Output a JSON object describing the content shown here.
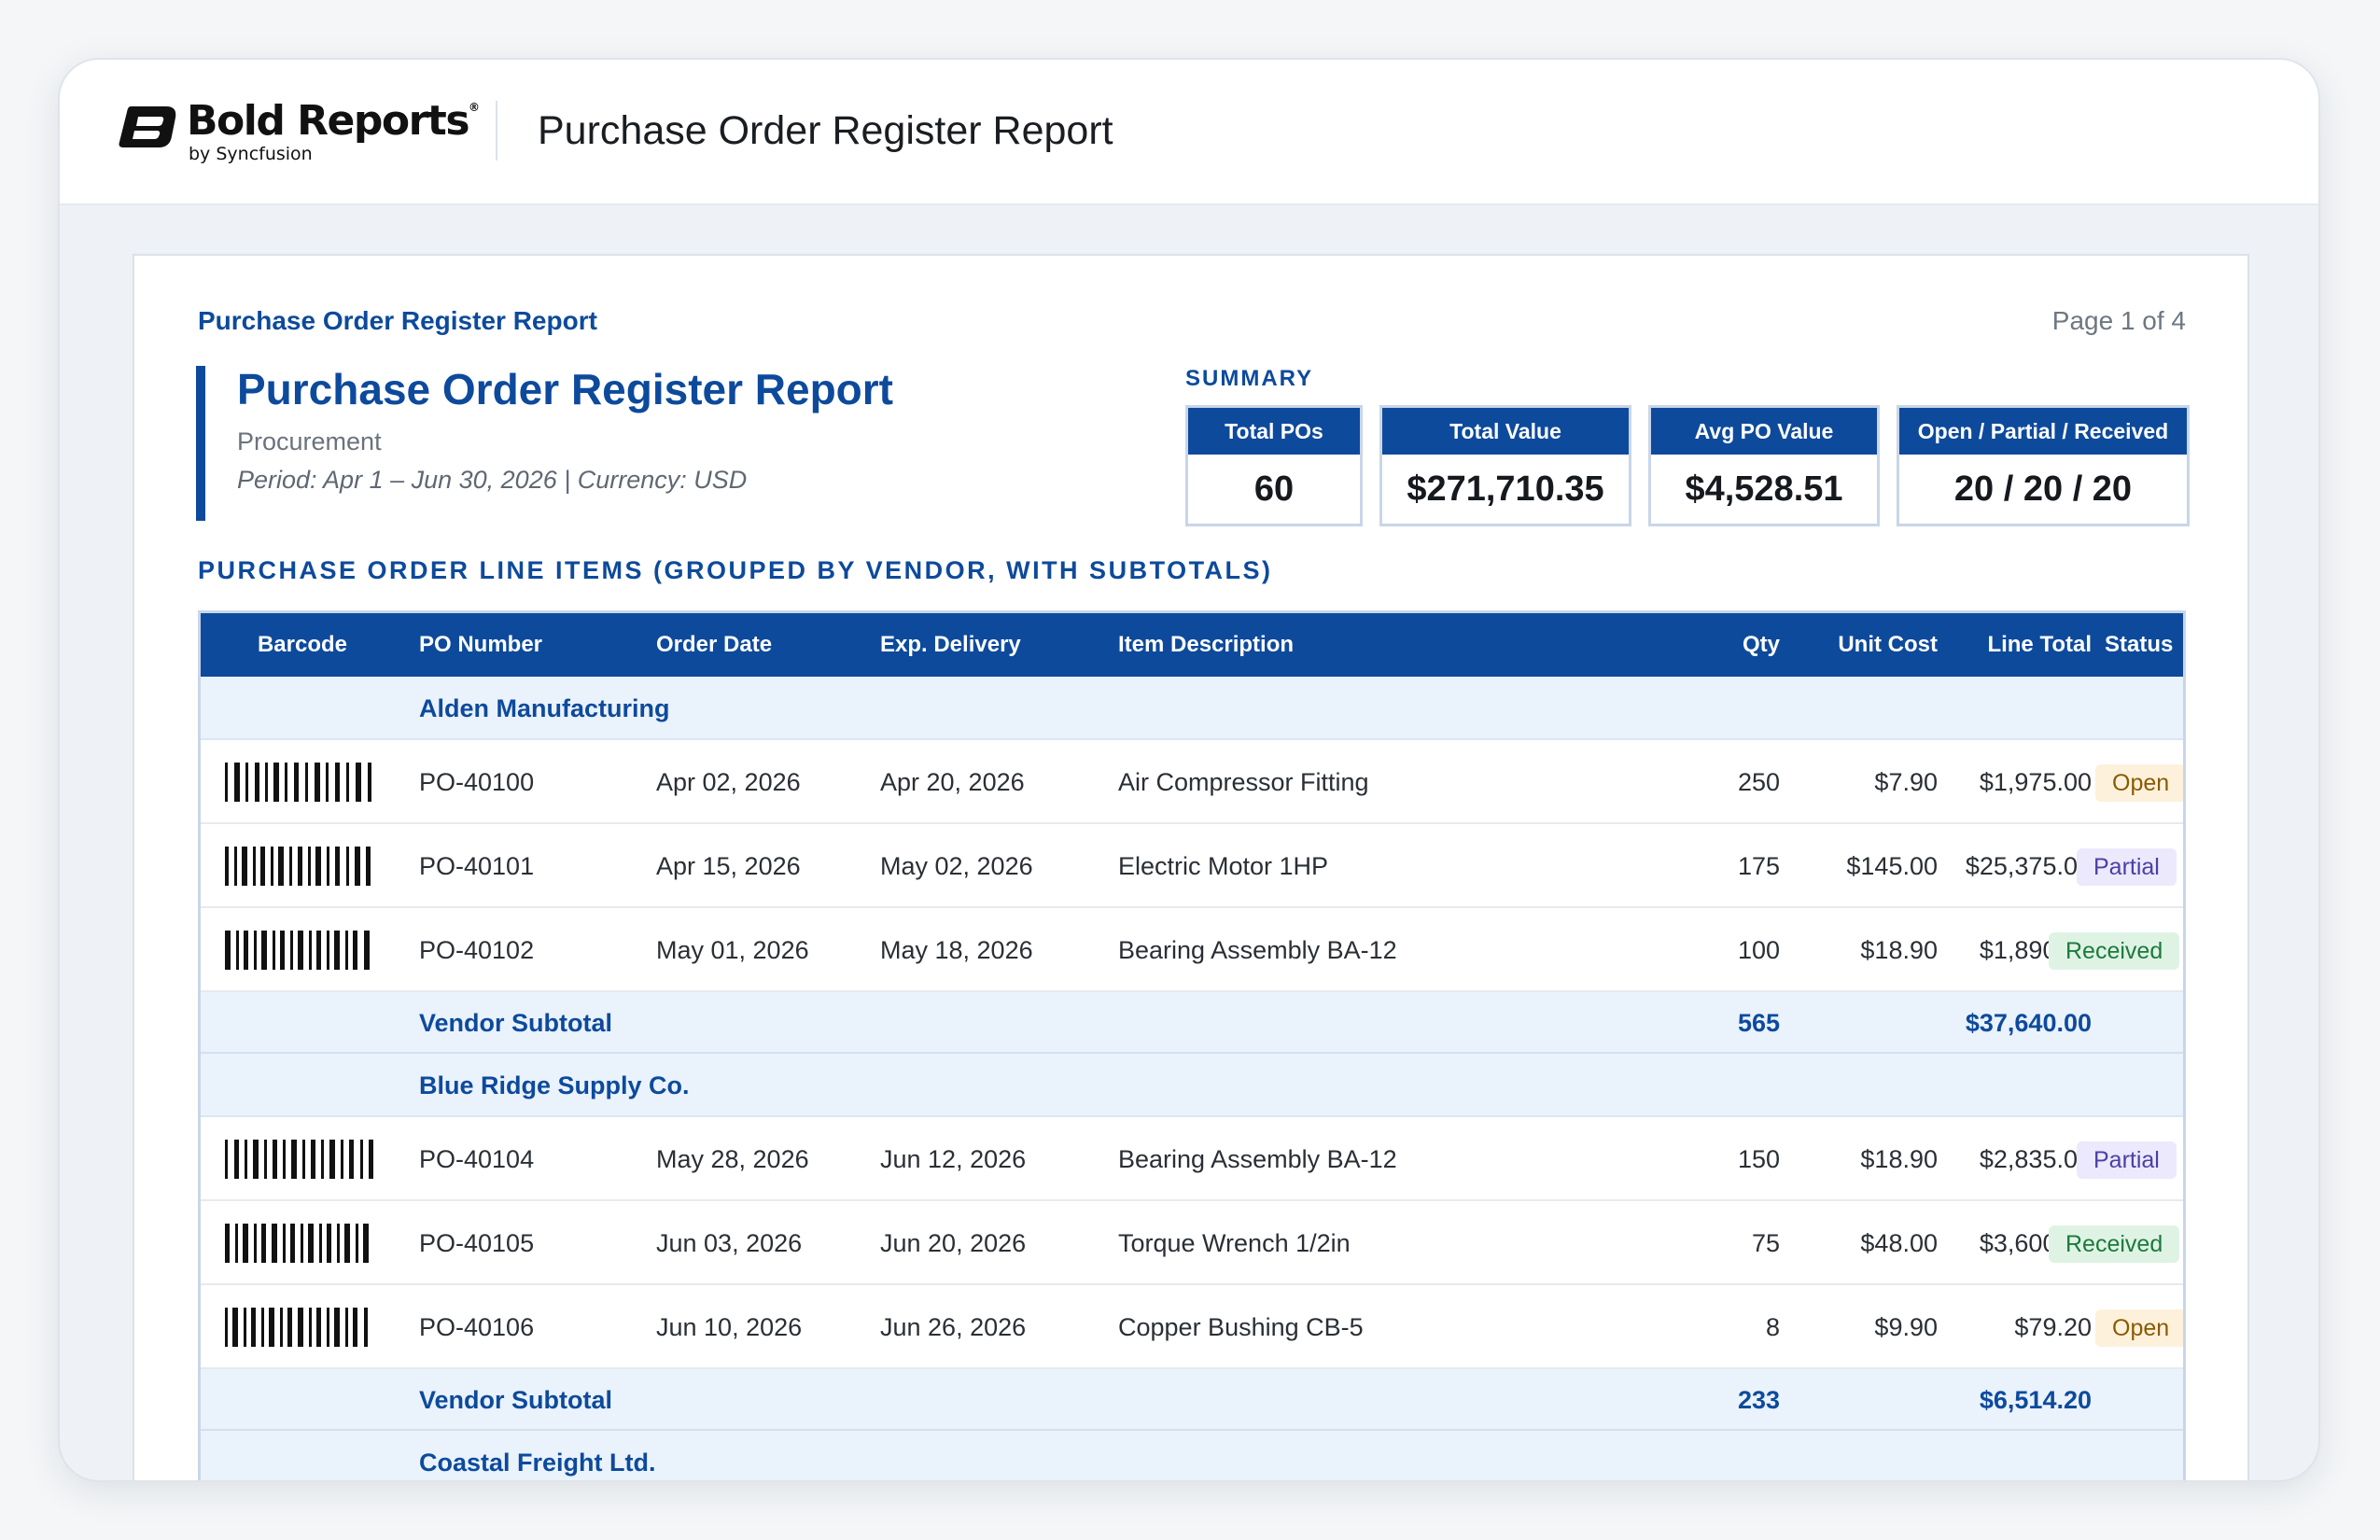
{
  "app": {
    "logo_word": "Bold Reports",
    "logo_reg": "®",
    "logo_sub": "by Syncfusion",
    "title": "Purchase Order Register Report"
  },
  "page": {
    "header_title": "Purchase Order Register Report",
    "page_number": "Page 1 of 4"
  },
  "report": {
    "title": "Purchase Order Register Report",
    "department": "Procurement",
    "period": "Period: Apr 1 – Jun 30, 2026  |  Currency: USD"
  },
  "summary": {
    "label": "SUMMARY",
    "kpis": [
      {
        "label": "Total POs",
        "value": "60"
      },
      {
        "label": "Total Value",
        "value": "$271,710.35"
      },
      {
        "label": "Avg PO Value",
        "value": "$4,528.51"
      },
      {
        "label": "Open / Partial / Received",
        "value": "20 / 20 / 20"
      }
    ]
  },
  "section_label": "PURCHASE ORDER LINE ITEMS (GROUPED BY VENDOR, WITH SUBTOTALS)",
  "table": {
    "columns": {
      "barcode": "Barcode",
      "po_number": "PO Number",
      "order_date": "Order Date",
      "exp_delivery": "Exp. Delivery",
      "item_description": "Item Description",
      "qty": "Qty",
      "unit_cost": "Unit Cost",
      "line_total": "Line Total",
      "status": "Status"
    },
    "groups": [
      {
        "vendor": "Alden Manufacturing",
        "rows": [
          {
            "po": "PO-40100",
            "order_date": "Apr 02, 2026",
            "exp_delivery": "Apr 20, 2026",
            "item": "Air Compressor Fitting",
            "qty": "250",
            "unit_cost": "$7.90",
            "line_total": "$1,975.00",
            "status": "Open"
          },
          {
            "po": "PO-40101",
            "order_date": "Apr 15, 2026",
            "exp_delivery": "May 02, 2026",
            "item": "Electric Motor 1HP",
            "qty": "175",
            "unit_cost": "$145.00",
            "line_total": "$25,375.00",
            "status": "Partial"
          },
          {
            "po": "PO-40102",
            "order_date": "May 01, 2026",
            "exp_delivery": "May 18, 2026",
            "item": "Bearing Assembly BA-12",
            "qty": "100",
            "unit_cost": "$18.90",
            "line_total": "$1,890.00",
            "status": "Received"
          }
        ],
        "subtotal_label": "Vendor Subtotal",
        "subtotal_qty": "565",
        "subtotal_total": "$37,640.00"
      },
      {
        "vendor": "Blue Ridge Supply Co.",
        "rows": [
          {
            "po": "PO-40104",
            "order_date": "May 28, 2026",
            "exp_delivery": "Jun 12, 2026",
            "item": "Bearing Assembly BA-12",
            "qty": "150",
            "unit_cost": "$18.90",
            "line_total": "$2,835.00",
            "status": "Partial"
          },
          {
            "po": "PO-40105",
            "order_date": "Jun 03, 2026",
            "exp_delivery": "Jun 20, 2026",
            "item": "Torque Wrench 1/2in",
            "qty": "75",
            "unit_cost": "$48.00",
            "line_total": "$3,600.00",
            "status": "Received"
          },
          {
            "po": "PO-40106",
            "order_date": "Jun 10, 2026",
            "exp_delivery": "Jun 26, 2026",
            "item": "Copper Bushing CB-5",
            "qty": "8",
            "unit_cost": "$9.90",
            "line_total": "$79.20",
            "status": "Open"
          }
        ],
        "subtotal_label": "Vendor Subtotal",
        "subtotal_qty": "233",
        "subtotal_total": "$6,514.20"
      },
      {
        "vendor": "Coastal Freight Ltd.",
        "rows": []
      }
    ]
  },
  "colors": {
    "accent": "#0d4a9c",
    "group_bg": "#eaf2fc",
    "status_open": "#8a5a00",
    "status_partial": "#4b3fa6",
    "status_received": "#1c7a3c"
  },
  "icons": {
    "logo": "bold-reports-logo-icon",
    "barcode": "barcode-icon"
  }
}
